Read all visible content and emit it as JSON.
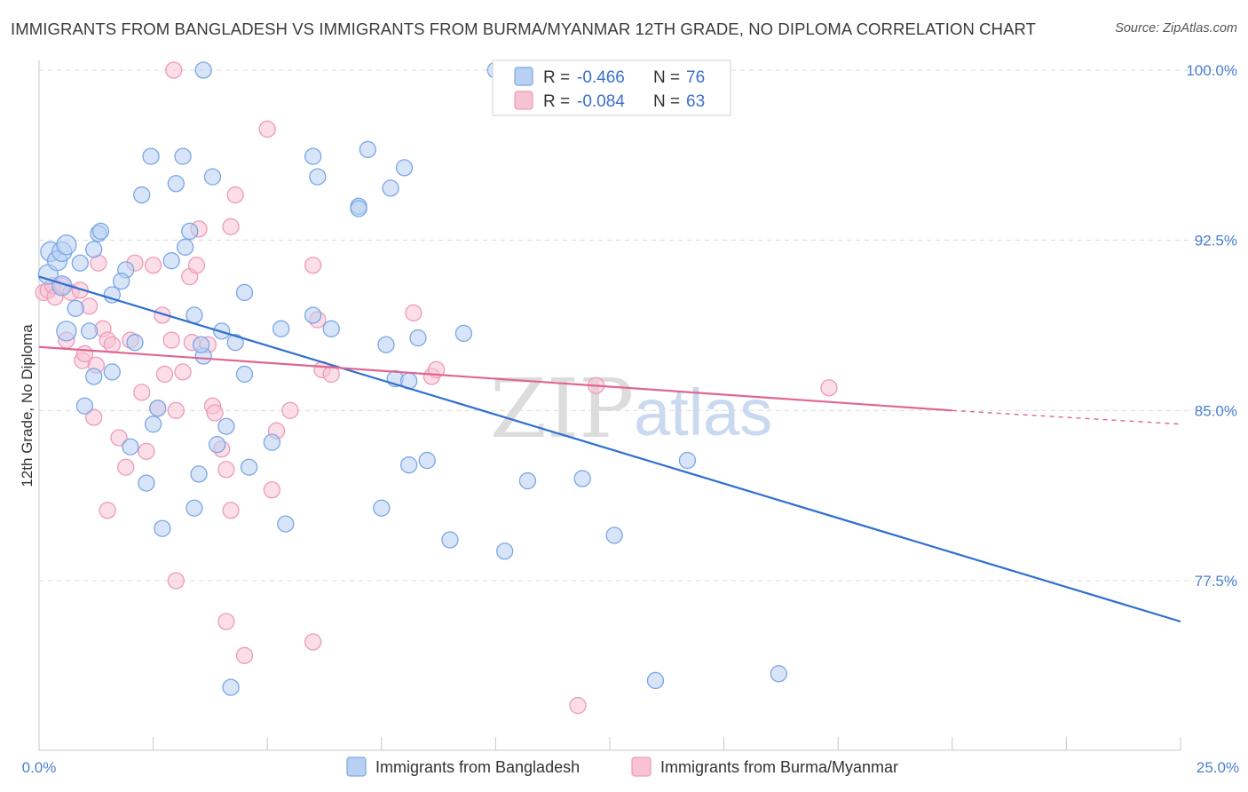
{
  "title": "IMMIGRANTS FROM BANGLADESH VS IMMIGRANTS FROM BURMA/MYANMAR 12TH GRADE, NO DIPLOMA CORRELATION CHART",
  "source": "Source: ZipAtlas.com",
  "watermark": {
    "part1": "ZIP",
    "part2": "atlas"
  },
  "colors": {
    "blue_fill": "#b8d0f2",
    "blue_stroke": "#7aa6e6",
    "blue_line": "#2f6fd0",
    "pink_fill": "#f7c3d3",
    "pink_stroke": "#ef9ab6",
    "pink_line": "#e0668f",
    "grid": "#d9d9d9",
    "tick_label": "#4a7fd0"
  },
  "legend": {
    "rows": [
      {
        "r_label": "R = ",
        "r_value": "-0.466",
        "n_label": "N = ",
        "n_value": "76",
        "series": "blue"
      },
      {
        "r_label": "R = ",
        "r_value": "-0.084",
        "n_label": "N = ",
        "n_value": "63",
        "series": "pink"
      }
    ]
  },
  "bottom_legend": [
    "Immigrants from Bangladesh",
    "Immigrants from Burma/Myanmar"
  ],
  "chart_data": {
    "type": "scatter",
    "title": "IMMIGRANTS FROM BANGLADESH VS IMMIGRANTS FROM BURMA/MYANMAR 12TH GRADE, NO DIPLOMA CORRELATION CHART",
    "xlabel": "",
    "ylabel": "12th Grade, No Diploma",
    "xlim": [
      0,
      25
    ],
    "ylim": [
      72,
      100.8
    ],
    "x_ticks": [
      "0.0%",
      "25.0%"
    ],
    "y_ticks": [
      {
        "value": 100.0,
        "label": "100.0%"
      },
      {
        "value": 92.5,
        "label": "92.5%"
      },
      {
        "value": 85.0,
        "label": "85.0%"
      },
      {
        "value": 77.5,
        "label": "77.5%"
      }
    ],
    "grid": "horizontal dashed",
    "legend_position": "top-center",
    "series": [
      {
        "name": "Immigrants from Bangladesh",
        "color": "#7aa6e6",
        "trend": {
          "x": [
            0,
            25
          ],
          "y": [
            90.9,
            75.7
          ],
          "dashed_from": null
        },
        "points": [
          [
            0.2,
            91.0
          ],
          [
            0.25,
            92.0
          ],
          [
            0.4,
            91.6
          ],
          [
            0.5,
            92.0
          ],
          [
            0.6,
            92.3
          ],
          [
            0.5,
            90.5
          ],
          [
            0.6,
            88.5
          ],
          [
            0.8,
            89.5
          ],
          [
            0.9,
            91.5
          ],
          [
            1.1,
            88.5
          ],
          [
            1.2,
            92.1
          ],
          [
            1.3,
            92.8
          ],
          [
            1.35,
            92.9
          ],
          [
            1.6,
            90.1
          ],
          [
            1.9,
            91.2
          ],
          [
            1.8,
            90.7
          ],
          [
            1.6,
            86.7
          ],
          [
            1.2,
            86.5
          ],
          [
            1.0,
            85.2
          ],
          [
            2.1,
            88.0
          ],
          [
            2.25,
            94.5
          ],
          [
            2.9,
            91.6
          ],
          [
            2.45,
            96.2
          ],
          [
            3.0,
            95.0
          ],
          [
            3.15,
            96.2
          ],
          [
            3.3,
            92.9
          ],
          [
            3.2,
            92.2
          ],
          [
            3.4,
            89.2
          ],
          [
            3.6,
            87.4
          ],
          [
            3.55,
            87.9
          ],
          [
            3.8,
            95.3
          ],
          [
            3.6,
            100.0
          ],
          [
            4.0,
            88.5
          ],
          [
            4.3,
            88.0
          ],
          [
            4.5,
            90.2
          ],
          [
            4.5,
            86.6
          ],
          [
            5.3,
            88.6
          ],
          [
            6.0,
            96.2
          ],
          [
            6.1,
            95.3
          ],
          [
            6.0,
            89.2
          ],
          [
            6.4,
            88.6
          ],
          [
            7.2,
            96.5
          ],
          [
            7.0,
            94.0
          ],
          [
            7.0,
            93.9
          ],
          [
            7.7,
            94.8
          ],
          [
            7.8,
            86.4
          ],
          [
            8.0,
            95.7
          ],
          [
            8.3,
            88.2
          ],
          [
            7.6,
            87.9
          ],
          [
            8.1,
            86.3
          ],
          [
            2.5,
            84.4
          ],
          [
            2.6,
            85.1
          ],
          [
            2.0,
            83.4
          ],
          [
            2.35,
            81.8
          ],
          [
            3.5,
            82.2
          ],
          [
            3.4,
            80.7
          ],
          [
            2.7,
            79.8
          ],
          [
            4.1,
            84.3
          ],
          [
            3.9,
            83.5
          ],
          [
            4.6,
            82.5
          ],
          [
            5.1,
            83.6
          ],
          [
            5.4,
            80.0
          ],
          [
            7.5,
            80.7
          ],
          [
            8.1,
            82.6
          ],
          [
            8.5,
            82.8
          ],
          [
            9.0,
            79.3
          ],
          [
            10.2,
            78.8
          ],
          [
            10.7,
            81.9
          ],
          [
            9.3,
            88.4
          ],
          [
            11.9,
            82.0
          ],
          [
            12.6,
            79.5
          ],
          [
            14.2,
            82.8
          ],
          [
            4.2,
            72.8
          ],
          [
            13.5,
            73.1
          ],
          [
            16.2,
            73.4
          ],
          [
            10.0,
            100.0
          ]
        ]
      },
      {
        "name": "Immigrants from Burma/Myanmar",
        "color": "#ef9ab6",
        "trend": {
          "x": [
            0,
            20,
            25
          ],
          "y": [
            87.8,
            85.0,
            84.4
          ],
          "dashed_from": 20
        },
        "points": [
          [
            0.1,
            90.2
          ],
          [
            0.2,
            90.3
          ],
          [
            0.3,
            90.5
          ],
          [
            0.35,
            90.0
          ],
          [
            0.5,
            90.5
          ],
          [
            0.6,
            88.1
          ],
          [
            0.7,
            90.2
          ],
          [
            0.9,
            90.3
          ],
          [
            0.95,
            87.2
          ],
          [
            1.0,
            87.5
          ],
          [
            1.1,
            89.6
          ],
          [
            1.2,
            84.7
          ],
          [
            1.25,
            87.0
          ],
          [
            1.4,
            88.6
          ],
          [
            1.5,
            88.1
          ],
          [
            1.6,
            87.9
          ],
          [
            1.3,
            91.5
          ],
          [
            1.75,
            83.8
          ],
          [
            1.9,
            82.5
          ],
          [
            2.0,
            88.1
          ],
          [
            2.1,
            91.5
          ],
          [
            2.25,
            85.8
          ],
          [
            2.35,
            83.2
          ],
          [
            2.5,
            91.4
          ],
          [
            2.6,
            85.1
          ],
          [
            2.7,
            89.2
          ],
          [
            2.75,
            86.6
          ],
          [
            2.9,
            88.1
          ],
          [
            3.0,
            85.0
          ],
          [
            3.15,
            86.7
          ],
          [
            3.3,
            90.9
          ],
          [
            3.35,
            88.0
          ],
          [
            3.45,
            91.4
          ],
          [
            3.5,
            93.0
          ],
          [
            3.7,
            87.9
          ],
          [
            3.8,
            85.2
          ],
          [
            3.85,
            84.9
          ],
          [
            4.0,
            83.3
          ],
          [
            4.1,
            82.4
          ],
          [
            4.2,
            80.6
          ],
          [
            4.3,
            94.5
          ],
          [
            4.2,
            93.1
          ],
          [
            5.0,
            97.4
          ],
          [
            5.1,
            81.5
          ],
          [
            5.2,
            84.1
          ],
          [
            5.5,
            85.0
          ],
          [
            6.0,
            91.4
          ],
          [
            6.1,
            89.0
          ],
          [
            6.2,
            86.8
          ],
          [
            6.4,
            86.6
          ],
          [
            3.0,
            77.5
          ],
          [
            4.1,
            75.7
          ],
          [
            4.5,
            74.2
          ],
          [
            6.0,
            74.8
          ],
          [
            1.5,
            80.6
          ],
          [
            2.95,
            100.0
          ],
          [
            8.2,
            89.3
          ],
          [
            8.6,
            86.5
          ],
          [
            8.7,
            86.8
          ],
          [
            12.2,
            86.1
          ],
          [
            17.3,
            86.0
          ],
          [
            11.8,
            72.0
          ],
          [
            13.2,
            100.0
          ]
        ]
      }
    ]
  }
}
